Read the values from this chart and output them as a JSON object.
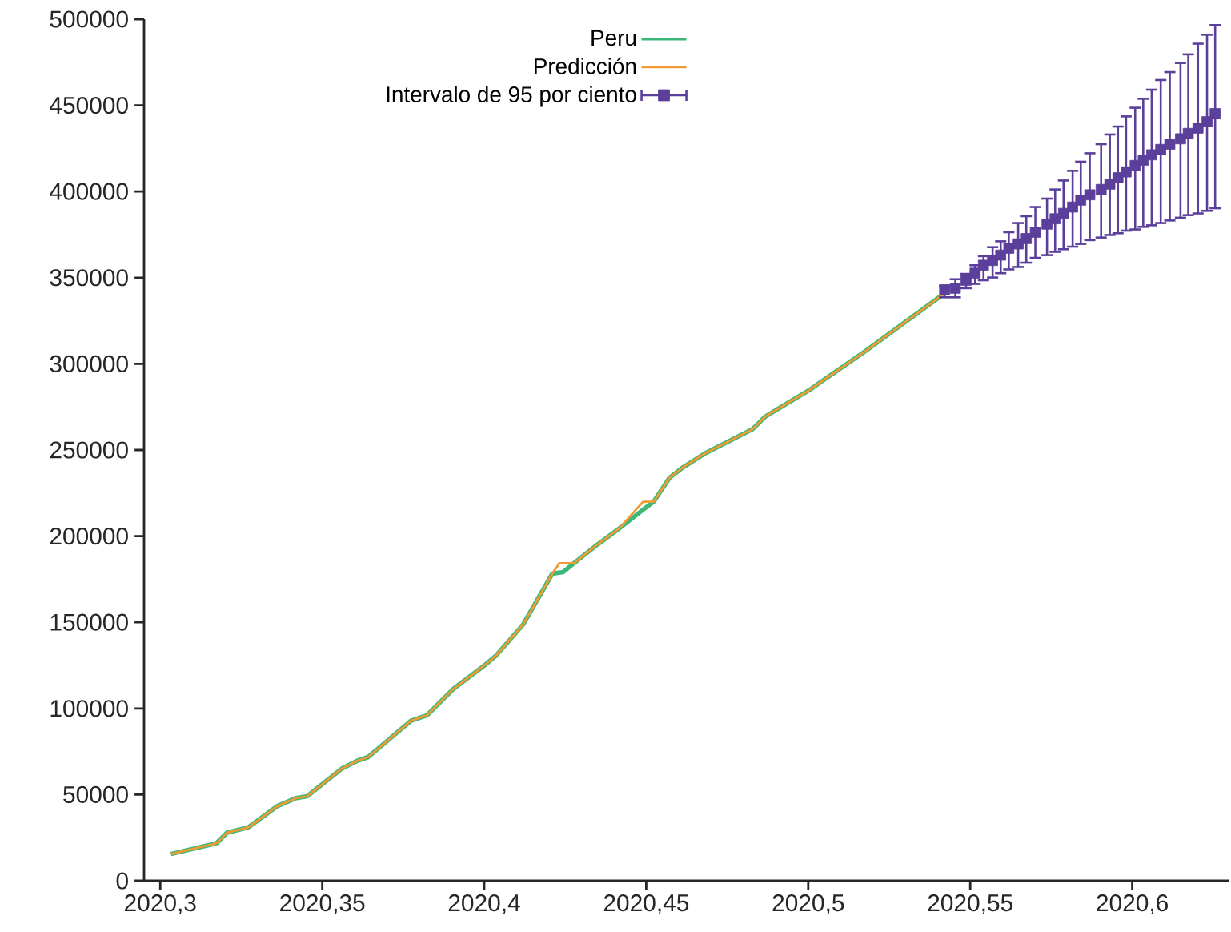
{
  "chart_data": {
    "type": "line",
    "xlim": [
      2020.295,
      2020.63
    ],
    "ylim": [
      0,
      500000
    ],
    "xticks": [
      {
        "value": 2020.3,
        "label": "2020,3"
      },
      {
        "value": 2020.35,
        "label": "2020,35"
      },
      {
        "value": 2020.4,
        "label": "2020,4"
      },
      {
        "value": 2020.45,
        "label": "2020,45"
      },
      {
        "value": 2020.5,
        "label": "2020,5"
      },
      {
        "value": 2020.55,
        "label": "2020,55"
      },
      {
        "value": 2020.6,
        "label": "2020,6"
      }
    ],
    "yticks": [
      0,
      50000,
      100000,
      150000,
      200000,
      250000,
      300000,
      350000,
      400000,
      450000,
      500000
    ],
    "legend": "top",
    "series": [
      {
        "name": "Peru",
        "color": "#3cb878",
        "x": [
          2020.3033,
          2020.3173,
          2020.3206,
          2020.3272,
          2020.3362,
          2020.342,
          2020.3453,
          2020.356,
          2020.3609,
          2020.3642,
          2020.3774,
          2020.3823,
          2020.3906,
          2020.4004,
          2020.4037,
          2020.412,
          2020.421,
          2020.4243,
          2020.4277,
          2020.435,
          2020.4417,
          2020.449,
          2020.4523,
          2020.4572,
          2020.4614,
          2020.468,
          2020.4828,
          2020.4868,
          2020.5,
          2020.5178,
          2020.5415
        ],
        "values": [
          15500,
          21700,
          27900,
          31000,
          43400,
          48000,
          49000,
          65000,
          69700,
          71800,
          92900,
          96000,
          111500,
          125500,
          130800,
          148700,
          178200,
          179100,
          184300,
          195200,
          204500,
          215300,
          220000,
          233900,
          240000,
          247900,
          262100,
          269500,
          284400,
          307600,
          340100
        ]
      },
      {
        "name": "Predicción",
        "color": "#f39a35",
        "x": [
          2020.3033,
          2020.3173,
          2020.3206,
          2020.3272,
          2020.3362,
          2020.342,
          2020.3453,
          2020.356,
          2020.3609,
          2020.3642,
          2020.3774,
          2020.3823,
          2020.3906,
          2020.4004,
          2020.4037,
          2020.412,
          2020.421,
          2020.4232,
          2020.4277,
          2020.435,
          2020.4417,
          2020.449,
          2020.4523,
          2020.4572,
          2020.4614,
          2020.468,
          2020.4828,
          2020.4868,
          2020.5,
          2020.5178,
          2020.5415
        ],
        "values": [
          15500,
          21700,
          27900,
          31000,
          43400,
          48000,
          49000,
          65000,
          69700,
          71800,
          92900,
          96000,
          111500,
          125500,
          130800,
          148700,
          178200,
          184300,
          184300,
          195200,
          204500,
          220000,
          220000,
          233900,
          240000,
          247900,
          262100,
          269500,
          284400,
          307600,
          340100
        ]
      },
      {
        "name": "Intervalo de 95 por ciento",
        "color": "#5b3f9a",
        "type": "scatter",
        "marker": "square",
        "x": [
          2020.5421,
          2020.5454,
          2020.5487,
          2020.5515,
          2020.5541,
          2020.5569,
          2020.5594,
          2020.5619,
          2020.5648,
          2020.5673,
          2020.5701,
          2020.5737,
          2020.5762,
          2020.5788,
          2020.5816,
          2020.5841,
          2020.5869,
          2020.5904,
          2020.5931,
          2020.5956,
          2020.5981,
          2020.6009,
          2020.6034,
          2020.606,
          2020.6088,
          2020.6116,
          2020.6149,
          2020.6173,
          2020.6203,
          2020.6231,
          2020.6256
        ],
        "values": [
          342900,
          343900,
          348500,
          352600,
          357200,
          360000,
          363100,
          367100,
          369600,
          372700,
          376400,
          381100,
          384200,
          387300,
          391000,
          395000,
          398100,
          401200,
          404300,
          408000,
          411400,
          415100,
          418200,
          421300,
          424400,
          427500,
          430600,
          433700,
          436800,
          440500,
          445200
        ],
        "errors": [
          [
            338600,
            345400
          ],
          [
            338600,
            349100
          ],
          [
            343900,
            352200
          ],
          [
            346400,
            357200
          ],
          [
            348500,
            362500
          ],
          [
            350100,
            367700
          ],
          [
            352600,
            371100
          ],
          [
            354800,
            376400
          ],
          [
            356200,
            381700
          ],
          [
            358700,
            385700
          ],
          [
            361500,
            391000
          ],
          [
            363100,
            395900
          ],
          [
            365000,
            401200
          ],
          [
            366500,
            406400
          ],
          [
            368000,
            412000
          ],
          [
            369600,
            417300
          ],
          [
            371800,
            422200
          ],
          [
            373300,
            427500
          ],
          [
            374800,
            433100
          ],
          [
            375800,
            437700
          ],
          [
            377300,
            443600
          ],
          [
            378000,
            448600
          ],
          [
            379500,
            453800
          ],
          [
            380400,
            459100
          ],
          [
            381700,
            464700
          ],
          [
            383200,
            469300
          ],
          [
            384800,
            474600
          ],
          [
            386300,
            479600
          ],
          [
            387300,
            485800
          ],
          [
            388800,
            491000
          ],
          [
            390300,
            496600
          ]
        ]
      }
    ]
  }
}
